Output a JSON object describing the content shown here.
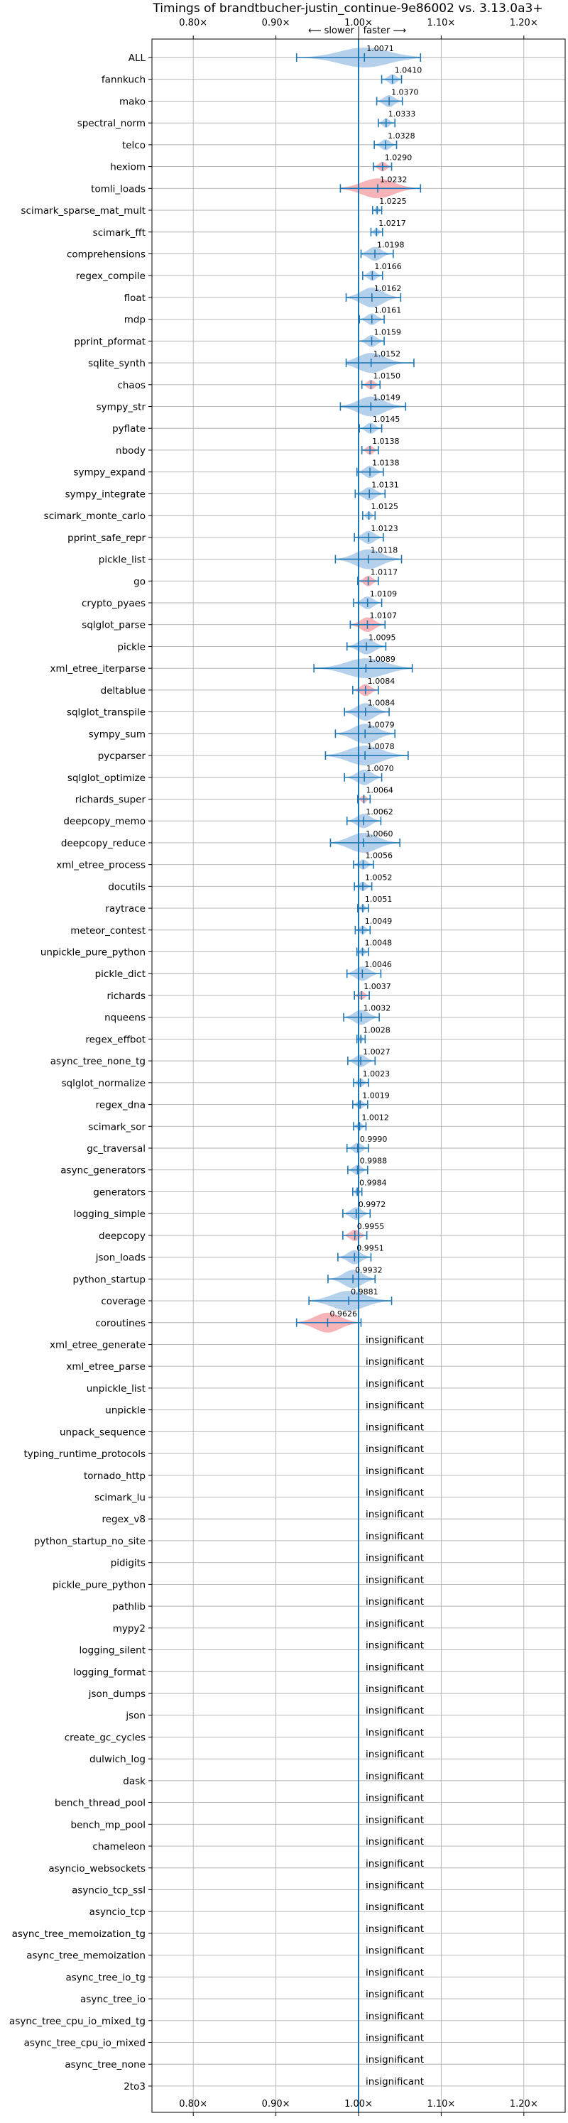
{
  "chart_data": {
    "type": "violin",
    "title": "Timings of brandtbucher-justin_continue-9e86002 vs. 3.13.0a3+",
    "subtitle": "⟵ slower | faster ⟶",
    "insignificant_label": "insignificant",
    "xlim": [
      0.75,
      1.25
    ],
    "xticks": [
      0.8,
      0.9,
      1.0,
      1.1,
      1.2
    ],
    "xtick_labels": [
      "0.80×",
      "0.90×",
      "1.00×",
      "1.10×",
      "1.20×"
    ],
    "grid": true,
    "colors": {
      "faster": "#a8c8e6",
      "slower": "#f4a7ab",
      "line": "#1f77b4"
    },
    "benchmarks": [
      {
        "name": "ALL",
        "mean": 1.0071,
        "min": 0.925,
        "max": 1.075,
        "dir": "faster"
      },
      {
        "name": "fannkuch",
        "mean": 1.041,
        "min": 1.028,
        "max": 1.052,
        "dir": "faster"
      },
      {
        "name": "mako",
        "mean": 1.037,
        "min": 1.022,
        "max": 1.053,
        "dir": "faster"
      },
      {
        "name": "spectral_norm",
        "mean": 1.0333,
        "min": 1.024,
        "max": 1.044,
        "dir": "faster"
      },
      {
        "name": "telco",
        "mean": 1.0328,
        "min": 1.019,
        "max": 1.046,
        "dir": "faster"
      },
      {
        "name": "hexiom",
        "mean": 1.029,
        "min": 1.018,
        "max": 1.04,
        "dir": "slower"
      },
      {
        "name": "tomli_loads",
        "mean": 1.0232,
        "min": 0.978,
        "max": 1.075,
        "dir": "slower"
      },
      {
        "name": "scimark_sparse_mat_mult",
        "mean": 1.0225,
        "min": 1.017,
        "max": 1.028,
        "dir": "faster"
      },
      {
        "name": "scimark_fft",
        "mean": 1.0217,
        "min": 1.015,
        "max": 1.029,
        "dir": "faster"
      },
      {
        "name": "comprehensions",
        "mean": 1.0198,
        "min": 1.003,
        "max": 1.042,
        "dir": "faster"
      },
      {
        "name": "regex_compile",
        "mean": 1.0166,
        "min": 1.005,
        "max": 1.029,
        "dir": "faster"
      },
      {
        "name": "float",
        "mean": 1.0162,
        "min": 0.985,
        "max": 1.051,
        "dir": "faster"
      },
      {
        "name": "mdp",
        "mean": 1.0161,
        "min": 1.001,
        "max": 1.031,
        "dir": "faster"
      },
      {
        "name": "pprint_pformat",
        "mean": 1.0159,
        "min": 1.0,
        "max": 1.031,
        "dir": "faster"
      },
      {
        "name": "sqlite_synth",
        "mean": 1.0152,
        "min": 0.985,
        "max": 1.067,
        "dir": "faster"
      },
      {
        "name": "chaos",
        "mean": 1.015,
        "min": 1.004,
        "max": 1.026,
        "dir": "slower"
      },
      {
        "name": "sympy_str",
        "mean": 1.0149,
        "min": 0.978,
        "max": 1.057,
        "dir": "faster"
      },
      {
        "name": "pyflate",
        "mean": 1.0145,
        "min": 1.001,
        "max": 1.028,
        "dir": "faster"
      },
      {
        "name": "nbody",
        "mean": 1.0138,
        "min": 1.004,
        "max": 1.024,
        "dir": "slower"
      },
      {
        "name": "sympy_expand",
        "mean": 1.0138,
        "min": 0.998,
        "max": 1.03,
        "dir": "faster"
      },
      {
        "name": "sympy_integrate",
        "mean": 1.0131,
        "min": 0.996,
        "max": 1.032,
        "dir": "faster"
      },
      {
        "name": "scimark_monte_carlo",
        "mean": 1.0125,
        "min": 1.005,
        "max": 1.02,
        "dir": "faster"
      },
      {
        "name": "pprint_safe_repr",
        "mean": 1.0123,
        "min": 0.995,
        "max": 1.03,
        "dir": "faster"
      },
      {
        "name": "pickle_list",
        "mean": 1.0118,
        "min": 0.972,
        "max": 1.052,
        "dir": "faster"
      },
      {
        "name": "go",
        "mean": 1.0117,
        "min": 0.999,
        "max": 1.024,
        "dir": "slower"
      },
      {
        "name": "crypto_pyaes",
        "mean": 1.0109,
        "min": 0.994,
        "max": 1.028,
        "dir": "faster"
      },
      {
        "name": "sqlglot_parse",
        "mean": 1.0107,
        "min": 0.99,
        "max": 1.032,
        "dir": "slower"
      },
      {
        "name": "pickle",
        "mean": 1.0095,
        "min": 0.986,
        "max": 1.033,
        "dir": "faster"
      },
      {
        "name": "xml_etree_iterparse",
        "mean": 1.0089,
        "min": 0.946,
        "max": 1.065,
        "dir": "faster"
      },
      {
        "name": "deltablue",
        "mean": 1.0084,
        "min": 0.993,
        "max": 1.024,
        "dir": "slower"
      },
      {
        "name": "sqlglot_transpile",
        "mean": 1.0084,
        "min": 0.983,
        "max": 1.037,
        "dir": "faster"
      },
      {
        "name": "sympy_sum",
        "mean": 1.0079,
        "min": 0.972,
        "max": 1.044,
        "dir": "faster"
      },
      {
        "name": "pycparser",
        "mean": 1.0078,
        "min": 0.96,
        "max": 1.06,
        "dir": "faster"
      },
      {
        "name": "sqlglot_optimize",
        "mean": 1.007,
        "min": 0.983,
        "max": 1.028,
        "dir": "faster"
      },
      {
        "name": "richards_super",
        "mean": 1.0064,
        "min": 0.999,
        "max": 1.014,
        "dir": "slower"
      },
      {
        "name": "deepcopy_memo",
        "mean": 1.0062,
        "min": 0.986,
        "max": 1.027,
        "dir": "faster"
      },
      {
        "name": "deepcopy_reduce",
        "mean": 1.006,
        "min": 0.966,
        "max": 1.05,
        "dir": "faster"
      },
      {
        "name": "xml_etree_process",
        "mean": 1.0056,
        "min": 0.994,
        "max": 1.018,
        "dir": "faster"
      },
      {
        "name": "docutils",
        "mean": 1.0052,
        "min": 0.995,
        "max": 1.016,
        "dir": "faster"
      },
      {
        "name": "raytrace",
        "mean": 1.0051,
        "min": 0.999,
        "max": 1.012,
        "dir": "faster"
      },
      {
        "name": "meteor_contest",
        "mean": 1.0049,
        "min": 0.996,
        "max": 1.014,
        "dir": "faster"
      },
      {
        "name": "unpickle_pure_python",
        "mean": 1.0048,
        "min": 0.998,
        "max": 1.012,
        "dir": "faster"
      },
      {
        "name": "pickle_dict",
        "mean": 1.0046,
        "min": 0.986,
        "max": 1.027,
        "dir": "faster"
      },
      {
        "name": "richards",
        "mean": 1.0037,
        "min": 0.995,
        "max": 1.013,
        "dir": "slower"
      },
      {
        "name": "nqueens",
        "mean": 1.0032,
        "min": 0.982,
        "max": 1.025,
        "dir": "faster"
      },
      {
        "name": "regex_effbot",
        "mean": 1.0028,
        "min": 0.998,
        "max": 1.008,
        "dir": "faster"
      },
      {
        "name": "async_tree_none_tg",
        "mean": 1.0027,
        "min": 0.987,
        "max": 1.02,
        "dir": "faster"
      },
      {
        "name": "sqlglot_normalize",
        "mean": 1.0023,
        "min": 0.994,
        "max": 1.012,
        "dir": "faster"
      },
      {
        "name": "regex_dna",
        "mean": 1.0019,
        "min": 0.993,
        "max": 1.011,
        "dir": "faster"
      },
      {
        "name": "scimark_sor",
        "mean": 1.0012,
        "min": 0.994,
        "max": 1.009,
        "dir": "faster"
      },
      {
        "name": "gc_traversal",
        "mean": 0.999,
        "min": 0.986,
        "max": 1.012,
        "dir": "faster"
      },
      {
        "name": "async_generators",
        "mean": 0.9988,
        "min": 0.987,
        "max": 1.011,
        "dir": "faster"
      },
      {
        "name": "generators",
        "mean": 0.9984,
        "min": 0.993,
        "max": 1.004,
        "dir": "faster"
      },
      {
        "name": "logging_simple",
        "mean": 0.9972,
        "min": 0.981,
        "max": 1.014,
        "dir": "faster"
      },
      {
        "name": "deepcopy",
        "mean": 0.9955,
        "min": 0.981,
        "max": 1.01,
        "dir": "slower"
      },
      {
        "name": "json_loads",
        "mean": 0.9951,
        "min": 0.975,
        "max": 1.015,
        "dir": "faster"
      },
      {
        "name": "python_startup",
        "mean": 0.9932,
        "min": 0.963,
        "max": 1.02,
        "dir": "faster"
      },
      {
        "name": "coverage",
        "mean": 0.9881,
        "min": 0.94,
        "max": 1.04,
        "dir": "faster"
      },
      {
        "name": "coroutines",
        "mean": 0.9626,
        "min": 0.925,
        "max": 1.003,
        "dir": "slower"
      }
    ],
    "insignificant": [
      "xml_etree_generate",
      "xml_etree_parse",
      "unpickle_list",
      "unpickle",
      "unpack_sequence",
      "typing_runtime_protocols",
      "tornado_http",
      "scimark_lu",
      "regex_v8",
      "python_startup_no_site",
      "pidigits",
      "pickle_pure_python",
      "pathlib",
      "mypy2",
      "logging_silent",
      "logging_format",
      "json_dumps",
      "json",
      "create_gc_cycles",
      "dulwich_log",
      "dask",
      "bench_thread_pool",
      "bench_mp_pool",
      "chameleon",
      "asyncio_websockets",
      "asyncio_tcp_ssl",
      "asyncio_tcp",
      "async_tree_memoization_tg",
      "async_tree_memoization",
      "async_tree_io_tg",
      "async_tree_io",
      "async_tree_cpu_io_mixed_tg",
      "async_tree_cpu_io_mixed",
      "async_tree_none",
      "2to3"
    ]
  }
}
